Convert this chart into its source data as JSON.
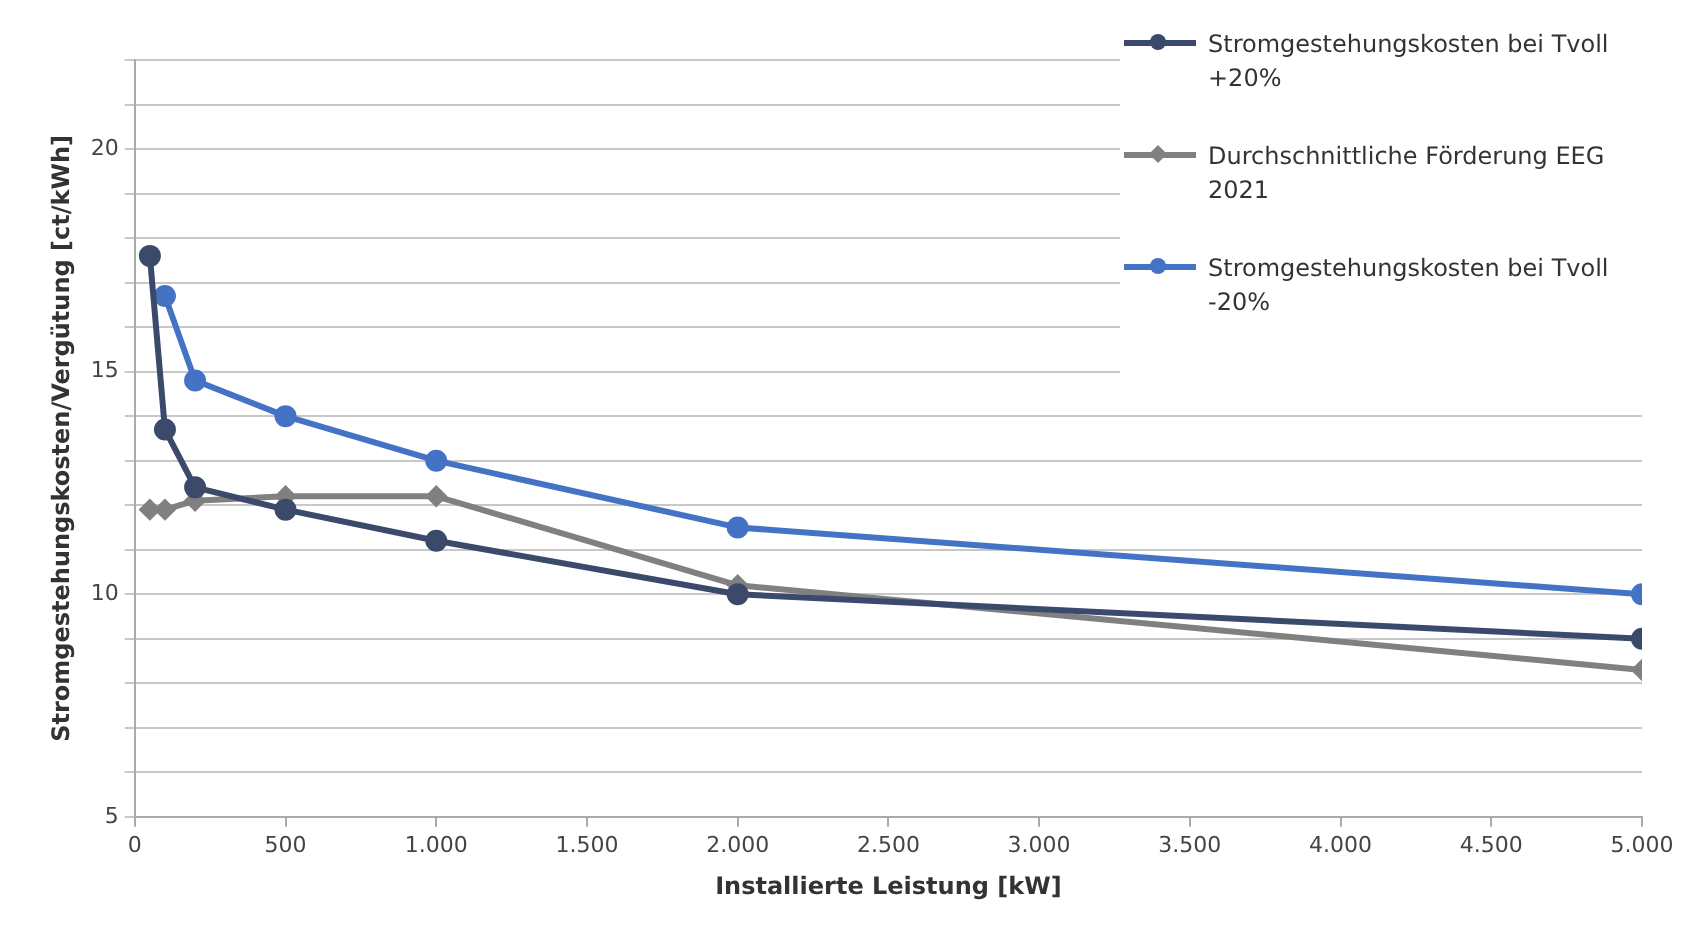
{
  "chart_data": {
    "type": "line",
    "xlabel": "Installierte Leistung [kW]",
    "ylabel": "Stromgestehungskosten/Vergütung [ct/kWh]",
    "x": [
      50,
      100,
      200,
      500,
      1000,
      2000,
      5000
    ],
    "series": [
      {
        "name": "Stromgestehungskosten bei Tvoll +20%",
        "color": "#3b4a6b",
        "marker": "circle",
        "values": [
          17.6,
          13.7,
          12.4,
          11.9,
          11.2,
          10.0,
          9.0
        ]
      },
      {
        "name": "Durchschnittliche Förderung EEG 2021",
        "color": "#808080",
        "marker": "diamond",
        "values": [
          11.9,
          11.9,
          12.1,
          12.2,
          12.2,
          10.2,
          8.3
        ]
      },
      {
        "name": "Stromgestehungskosten bei Tvoll -20%",
        "color": "#4472c4",
        "marker": "circle",
        "values": [
          null,
          16.7,
          14.8,
          14.0,
          13.0,
          11.5,
          10.0
        ]
      }
    ],
    "xlim": [
      0,
      5000
    ],
    "xticks": [
      0,
      {
        "value": 500,
        "label": "500"
      },
      {
        "value": 1000,
        "label": "1.000"
      },
      {
        "value": 1500,
        "label": "1.500"
      },
      {
        "value": 2000,
        "label": "2.000"
      },
      {
        "value": 2500,
        "label": "2.500"
      },
      {
        "value": 3000,
        "label": "3.000"
      },
      {
        "value": 3500,
        "label": "3.500"
      },
      {
        "value": 4000,
        "label": "4.000"
      },
      {
        "value": 4500,
        "label": "4.500"
      },
      {
        "value": 5000,
        "label": "5.000"
      }
    ],
    "ylim": [
      5,
      22
    ],
    "yticks": [
      5,
      {
        "value": 6,
        "label": null
      },
      {
        "value": 7,
        "label": null
      },
      {
        "value": 8,
        "label": null
      },
      {
        "value": 9,
        "label": null
      },
      10,
      {
        "value": 11,
        "label": null
      },
      {
        "value": 12,
        "label": null
      },
      {
        "value": 13,
        "label": null
      },
      {
        "value": 14,
        "label": null
      },
      15,
      {
        "value": 16,
        "label": null
      },
      {
        "value": 17,
        "label": null
      },
      {
        "value": 18,
        "label": null
      },
      {
        "value": 19,
        "label": null
      },
      20,
      {
        "value": 21,
        "label": null
      },
      {
        "value": 22,
        "label": null
      }
    ],
    "grid": "y",
    "legend": "top right",
    "line_style": "solid"
  }
}
